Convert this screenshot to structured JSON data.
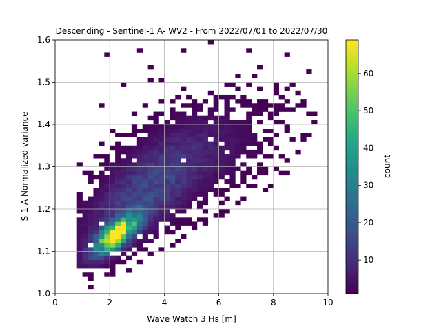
{
  "chart_data": {
    "type": "heatmap",
    "title": "Descending - Sentinel-1 A- WV2 - From 2022/07/01 to 2022/07/30",
    "xlabel": "Wave Watch 3 Hs [m]",
    "ylabel": "S-1 A Normalized variance",
    "xlim": [
      0,
      10
    ],
    "ylim": [
      1.0,
      1.6
    ],
    "xticks": [
      "0",
      "2",
      "4",
      "6",
      "8",
      "10"
    ],
    "yticks": [
      "1.0",
      "1.1",
      "1.2",
      "1.3",
      "1.4",
      "1.5",
      "1.6"
    ],
    "grid": true,
    "colormap": "viridis",
    "colorbar": {
      "label": "count",
      "range": [
        1,
        69
      ],
      "ticks": [
        "10",
        "20",
        "30",
        "40",
        "50",
        "60"
      ],
      "tick_values": [
        10,
        20,
        30,
        40,
        50,
        60
      ]
    },
    "bins": {
      "x_width": 0.2,
      "y_width": 0.01
    },
    "density_model": {
      "description": "2D histogram of Hs vs normalized variance; count peaks near Hs≈2.1 m, variance≈1.13",
      "peak": {
        "x": 2.1,
        "y": 1.135,
        "count": 69
      },
      "core": {
        "x_center": 2.25,
        "y_center": 1.14,
        "x_spread": 0.55,
        "y_spread": 0.022,
        "trend": 0.04,
        "count": 65
      },
      "body": {
        "x_center": 3.3,
        "y_center": 1.24,
        "x_spread": 1.4,
        "y_spread": 0.06,
        "trend": 0.04,
        "count": 14
      },
      "tail": {
        "x_center": 5.2,
        "y_center": 1.33,
        "x_spread": 1.9,
        "y_spread": 0.07,
        "trend": 0.02,
        "count": 4
      }
    }
  }
}
